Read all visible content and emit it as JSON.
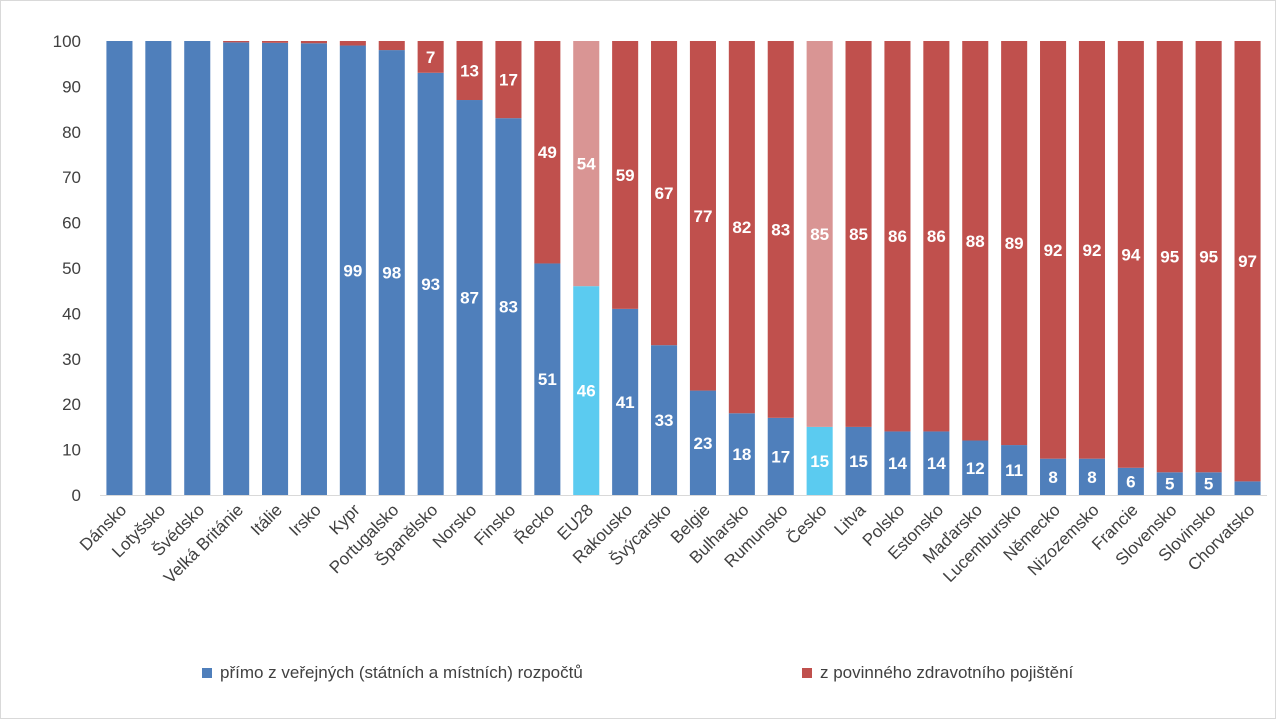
{
  "chart_data": {
    "type": "bar",
    "stacked": true,
    "ylim": [
      0,
      100
    ],
    "yticks": [
      0,
      10,
      20,
      30,
      40,
      50,
      60,
      70,
      80,
      90,
      100
    ],
    "grid": false,
    "legend_position": "bottom",
    "categories": [
      "Dánsko",
      "Lotyšsko",
      "Švédsko",
      "Velká Británie",
      "Itálie",
      "Irsko",
      "Kypr",
      "Portugalsko",
      "Španělsko",
      "Norsko",
      "Finsko",
      "Řecko",
      "EU28",
      "Rakousko",
      "Švýcarsko",
      "Belgie",
      "Bulharsko",
      "Rumunsko",
      "Česko",
      "Litva",
      "Polsko",
      "Estonsko",
      "Maďarsko",
      "Lucembursko",
      "Německo",
      "Nizozemsko",
      "Francie",
      "Slovensko",
      "Slovinsko",
      "Chorvatsko"
    ],
    "series": [
      {
        "name": "přímo z veřejných (státních a místních) rozpočtů",
        "color": "#4f7fbb",
        "highlight_color": "#5bcbf0",
        "values": [
          100,
          100,
          100,
          99.7,
          99.6,
          99.5,
          99,
          98,
          93,
          87,
          83,
          51,
          46,
          41,
          33,
          23,
          18,
          17,
          15,
          15,
          14,
          14,
          12,
          11,
          8,
          8,
          6,
          5,
          5,
          3
        ],
        "labels": [
          "",
          "",
          "",
          "",
          "",
          "",
          "99",
          "98",
          "93",
          "87",
          "83",
          "51",
          "46",
          "41",
          "33",
          "23",
          "18",
          "17",
          "15",
          "15",
          "14",
          "14",
          "12",
          "11",
          "8",
          "8",
          "6",
          "5",
          "5",
          ""
        ]
      },
      {
        "name": "z povinného zdravotního pojištění",
        "color": "#c0504d",
        "highlight_color": "#d99594",
        "values": [
          0,
          0,
          0,
          0.3,
          0.4,
          0.5,
          1,
          2,
          7,
          13,
          17,
          49,
          54,
          59,
          67,
          77,
          82,
          83,
          85,
          85,
          86,
          86,
          88,
          89,
          92,
          92,
          94,
          95,
          95,
          97
        ],
        "labels": [
          "",
          "",
          "",
          "",
          "",
          "",
          "",
          "",
          "7",
          "13",
          "17",
          "49",
          "54",
          "59",
          "67",
          "77",
          "82",
          "83",
          "85",
          "85",
          "86",
          "86",
          "88",
          "89",
          "92",
          "92",
          "94",
          "95",
          "95",
          "97"
        ]
      }
    ],
    "highlighted_categories": [
      "EU28",
      "Česko"
    ]
  },
  "legend": {
    "item1": "přímo z veřejných (státních a místních) rozpočtů",
    "item2": "z povinného zdravotního pojištění"
  }
}
